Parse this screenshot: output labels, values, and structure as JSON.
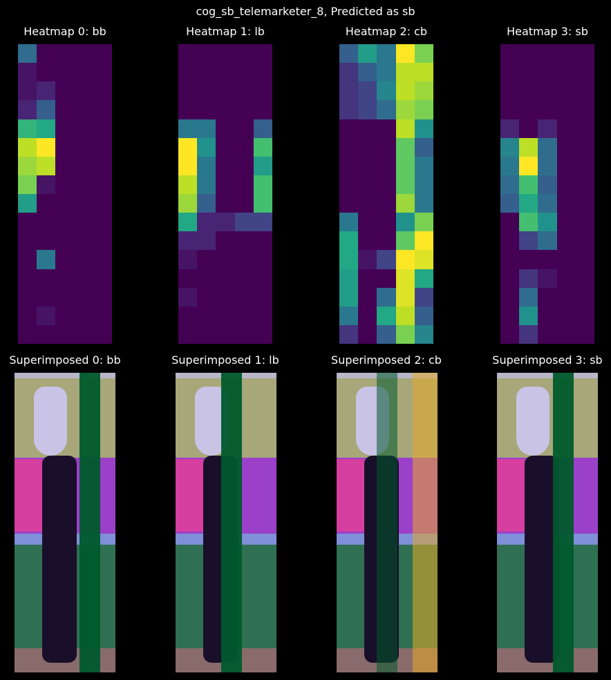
{
  "figure": {
    "suptitle": "cog_sb_telemarketer_8, Predicted as sb"
  },
  "colors": {
    "background": "#000000",
    "viridis": [
      "#440154",
      "#482475",
      "#414487",
      "#355f8d",
      "#2a788e",
      "#21918c",
      "#22a884",
      "#44bf70",
      "#7ad151",
      "#bddf26",
      "#fde725"
    ]
  },
  "chart_data": [
    {
      "type": "heatmap",
      "title": "Heatmap 0: bb",
      "colormap": "viridis",
      "values": [
        [
          0.35,
          0,
          0,
          0,
          0
        ],
        [
          0.05,
          0,
          0,
          0,
          0
        ],
        [
          0.05,
          0.1,
          0,
          0,
          0
        ],
        [
          0.1,
          0.3,
          0,
          0,
          0
        ],
        [
          0.65,
          0.6,
          0,
          0,
          0
        ],
        [
          0.9,
          1.0,
          0,
          0,
          0
        ],
        [
          0.85,
          0.9,
          0,
          0,
          0
        ],
        [
          0.8,
          0.05,
          0,
          0,
          0
        ],
        [
          0.55,
          0,
          0,
          0,
          0
        ],
        [
          0,
          0,
          0,
          0,
          0
        ],
        [
          0,
          0,
          0,
          0,
          0
        ],
        [
          0,
          0.4,
          0,
          0,
          0
        ],
        [
          0,
          0,
          0,
          0,
          0
        ],
        [
          0,
          0,
          0,
          0,
          0
        ],
        [
          0,
          0.05,
          0,
          0,
          0
        ],
        [
          0,
          0,
          0,
          0,
          0
        ]
      ]
    },
    {
      "type": "heatmap",
      "title": "Heatmap 1: lb",
      "colormap": "viridis",
      "values": [
        [
          0,
          0,
          0,
          0,
          0
        ],
        [
          0,
          0,
          0,
          0,
          0
        ],
        [
          0,
          0,
          0,
          0,
          0
        ],
        [
          0,
          0,
          0,
          0,
          0
        ],
        [
          0.4,
          0.4,
          0,
          0,
          0.3
        ],
        [
          1.0,
          0.5,
          0,
          0,
          0.7
        ],
        [
          1.0,
          0.4,
          0,
          0,
          0.55
        ],
        [
          0.9,
          0.4,
          0,
          0,
          0.7
        ],
        [
          0.85,
          0.3,
          0,
          0,
          0.7
        ],
        [
          0.6,
          0.1,
          0.1,
          0.2,
          0.2
        ],
        [
          0.1,
          0.1,
          0,
          0,
          0
        ],
        [
          0.05,
          0,
          0,
          0,
          0
        ],
        [
          0,
          0,
          0,
          0,
          0
        ],
        [
          0.05,
          0,
          0,
          0,
          0
        ],
        [
          0,
          0,
          0,
          0,
          0
        ],
        [
          0,
          0,
          0,
          0,
          0
        ]
      ]
    },
    {
      "type": "heatmap",
      "title": "Heatmap 2: cb",
      "colormap": "viridis",
      "values": [
        [
          0.3,
          0.55,
          0.4,
          1.0,
          0.8
        ],
        [
          0.15,
          0.3,
          0.4,
          0.9,
          0.9
        ],
        [
          0.15,
          0.2,
          0.45,
          0.9,
          0.85
        ],
        [
          0.15,
          0.2,
          0.35,
          0.85,
          0.8
        ],
        [
          0,
          0,
          0,
          0.9,
          0.5
        ],
        [
          0,
          0,
          0,
          0.75,
          0.3
        ],
        [
          0,
          0,
          0,
          0.75,
          0.4
        ],
        [
          0,
          0,
          0,
          0.75,
          0.4
        ],
        [
          0,
          0,
          0,
          0.85,
          0.4
        ],
        [
          0.4,
          0,
          0,
          0.5,
          0.8
        ],
        [
          0.6,
          0,
          0,
          0.75,
          1.0
        ],
        [
          0.6,
          0.05,
          0.2,
          1.0,
          0.95
        ],
        [
          0.55,
          0,
          0,
          0.95,
          0.6
        ],
        [
          0.55,
          0,
          0.35,
          0.95,
          0.2
        ],
        [
          0.4,
          0,
          0.6,
          0.9,
          0.3
        ],
        [
          0.15,
          0,
          0.3,
          0.8,
          0.45
        ]
      ]
    },
    {
      "type": "heatmap",
      "title": "Heatmap 3: sb",
      "colormap": "viridis",
      "values": [
        [
          0,
          0,
          0,
          0,
          0
        ],
        [
          0,
          0,
          0,
          0,
          0
        ],
        [
          0,
          0,
          0,
          0,
          0
        ],
        [
          0,
          0,
          0,
          0,
          0
        ],
        [
          0.1,
          0,
          0.1,
          0,
          0
        ],
        [
          0.45,
          0.9,
          0.35,
          0,
          0
        ],
        [
          0.4,
          1.0,
          0.35,
          0,
          0
        ],
        [
          0.35,
          0.7,
          0.3,
          0,
          0
        ],
        [
          0.3,
          0.6,
          0.35,
          0,
          0
        ],
        [
          0,
          0.7,
          0.5,
          0,
          0
        ],
        [
          0,
          0.2,
          0.35,
          0,
          0
        ],
        [
          0,
          0,
          0,
          0,
          0
        ],
        [
          0,
          0.15,
          0.05,
          0,
          0
        ],
        [
          0,
          0.35,
          0,
          0,
          0
        ],
        [
          0,
          0.5,
          0,
          0,
          0
        ],
        [
          0,
          0.15,
          0,
          0,
          0
        ]
      ]
    },
    {
      "type": "heatmap",
      "title": "Superimposed 0: bb",
      "overlay": true
    },
    {
      "type": "heatmap",
      "title": "Superimposed 1: lb",
      "overlay": true
    },
    {
      "type": "heatmap",
      "title": "Superimposed 2: cb",
      "overlay": true
    },
    {
      "type": "heatmap",
      "title": "Superimposed 3: sb",
      "overlay": true
    }
  ]
}
